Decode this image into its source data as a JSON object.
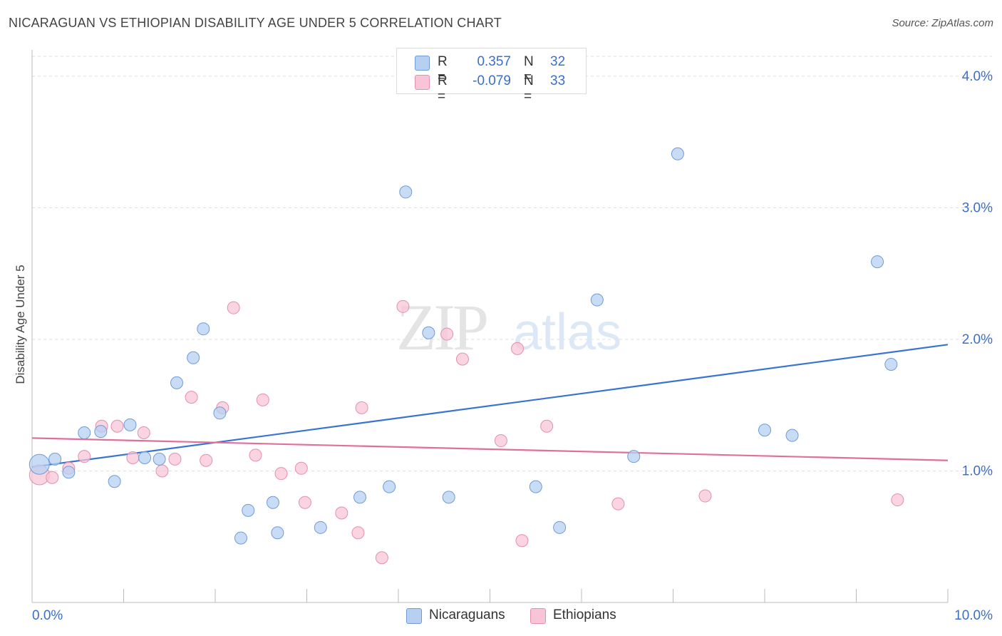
{
  "title": "NICARAGUAN VS ETHIOPIAN DISABILITY AGE UNDER 5 CORRELATION CHART",
  "source": "Source: ZipAtlas.com",
  "watermark": {
    "zip": "ZIP",
    "atlas": "atlas"
  },
  "colors": {
    "blue_fill": "#b7d0f2",
    "blue_stroke": "#6f9bd9",
    "blue_line": "#3a74d1",
    "pink_fill": "#f8c5d6",
    "pink_stroke": "#e58fae",
    "pink_line": "#e0709a",
    "axis_text": "#3b6fc9",
    "grid": "#dddddd"
  },
  "legend": {
    "rows": [
      {
        "label": "R =",
        "r": "0.357",
        "n_label": "N =",
        "n": "32",
        "color": "#b7d0f2",
        "border": "#6f9bd9"
      },
      {
        "label": "R =",
        "r": "-0.079",
        "n_label": "N =",
        "n": "33",
        "color": "#f8c5d6",
        "border": "#e58fae"
      }
    ]
  },
  "bottom_legend": [
    {
      "label": "Nicaraguans",
      "color": "#b7d0f2",
      "border": "#6f9bd9"
    },
    {
      "label": "Ethiopians",
      "color": "#f8c5d6",
      "border": "#e58fae"
    }
  ],
  "chart_data": {
    "type": "scatter",
    "title": "NICARAGUAN VS ETHIOPIAN DISABILITY AGE UNDER 5 CORRELATION CHART",
    "xlabel": "",
    "ylabel": "Disability Age Under 5",
    "xlim": [
      0,
      10
    ],
    "ylim": [
      0,
      4.2
    ],
    "x_tick_labels": [
      "0.0%",
      "10.0%"
    ],
    "y_ticks": [
      1,
      2,
      3,
      4
    ],
    "y_tick_labels": [
      "1.0%",
      "2.0%",
      "3.0%",
      "4.0%"
    ],
    "series": [
      {
        "name": "Nicaraguans",
        "color": "#b7d0f2",
        "trend": {
          "x": [
            0,
            10
          ],
          "y": [
            1.03,
            1.96
          ]
        },
        "points": [
          {
            "x": 0.08,
            "y": 1.05,
            "size": "large"
          },
          {
            "x": 0.25,
            "y": 1.09
          },
          {
            "x": 0.4,
            "y": 0.99
          },
          {
            "x": 0.57,
            "y": 1.29
          },
          {
            "x": 0.75,
            "y": 1.3
          },
          {
            "x": 0.9,
            "y": 0.92
          },
          {
            "x": 1.07,
            "y": 1.35
          },
          {
            "x": 1.23,
            "y": 1.1
          },
          {
            "x": 1.39,
            "y": 1.09
          },
          {
            "x": 1.58,
            "y": 1.67
          },
          {
            "x": 1.76,
            "y": 1.86
          },
          {
            "x": 1.87,
            "y": 2.08
          },
          {
            "x": 2.05,
            "y": 1.44
          },
          {
            "x": 2.28,
            "y": 0.49
          },
          {
            "x": 2.36,
            "y": 0.7
          },
          {
            "x": 2.63,
            "y": 0.76
          },
          {
            "x": 2.68,
            "y": 0.53
          },
          {
            "x": 3.15,
            "y": 0.57
          },
          {
            "x": 3.58,
            "y": 0.8
          },
          {
            "x": 3.9,
            "y": 0.88
          },
          {
            "x": 4.08,
            "y": 3.12
          },
          {
            "x": 4.33,
            "y": 2.05
          },
          {
            "x": 4.55,
            "y": 0.8
          },
          {
            "x": 5.5,
            "y": 0.88
          },
          {
            "x": 5.76,
            "y": 0.57
          },
          {
            "x": 6.17,
            "y": 2.3
          },
          {
            "x": 6.57,
            "y": 1.11
          },
          {
            "x": 7.05,
            "y": 3.41
          },
          {
            "x": 8.0,
            "y": 1.31
          },
          {
            "x": 8.3,
            "y": 1.27
          },
          {
            "x": 9.23,
            "y": 2.59
          },
          {
            "x": 9.38,
            "y": 1.81
          }
        ]
      },
      {
        "name": "Ethiopians",
        "color": "#f8c5d6",
        "trend": {
          "x": [
            0,
            10
          ],
          "y": [
            1.25,
            1.08
          ]
        },
        "points": [
          {
            "x": 0.08,
            "y": 0.97,
            "size": "large"
          },
          {
            "x": 0.22,
            "y": 0.95
          },
          {
            "x": 0.4,
            "y": 1.02
          },
          {
            "x": 0.57,
            "y": 1.11
          },
          {
            "x": 0.76,
            "y": 1.34
          },
          {
            "x": 0.93,
            "y": 1.34
          },
          {
            "x": 1.1,
            "y": 1.1
          },
          {
            "x": 1.22,
            "y": 1.29
          },
          {
            "x": 1.42,
            "y": 1.0
          },
          {
            "x": 1.56,
            "y": 1.09
          },
          {
            "x": 1.74,
            "y": 1.56
          },
          {
            "x": 1.9,
            "y": 1.08
          },
          {
            "x": 2.08,
            "y": 1.48
          },
          {
            "x": 2.2,
            "y": 2.24
          },
          {
            "x": 2.44,
            "y": 1.12
          },
          {
            "x": 2.52,
            "y": 1.54
          },
          {
            "x": 2.72,
            "y": 0.98
          },
          {
            "x": 2.94,
            "y": 1.02
          },
          {
            "x": 2.98,
            "y": 0.76
          },
          {
            "x": 3.38,
            "y": 0.68
          },
          {
            "x": 3.6,
            "y": 1.48
          },
          {
            "x": 3.56,
            "y": 0.53
          },
          {
            "x": 3.82,
            "y": 0.34
          },
          {
            "x": 4.05,
            "y": 2.25
          },
          {
            "x": 4.53,
            "y": 2.04
          },
          {
            "x": 4.7,
            "y": 1.85
          },
          {
            "x": 5.12,
            "y": 1.23
          },
          {
            "x": 5.3,
            "y": 1.93
          },
          {
            "x": 5.35,
            "y": 0.47
          },
          {
            "x": 5.62,
            "y": 1.34
          },
          {
            "x": 6.4,
            "y": 0.75
          },
          {
            "x": 7.35,
            "y": 0.81
          },
          {
            "x": 9.45,
            "y": 0.78
          }
        ]
      }
    ]
  }
}
